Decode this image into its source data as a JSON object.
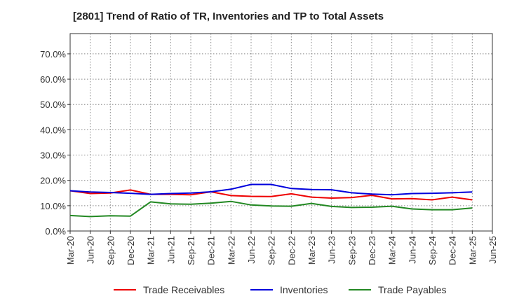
{
  "chart_data": {
    "type": "line",
    "title": "[2801]  Trend of Ratio of TR, Inventories and TP to Total Assets",
    "xlabel": "",
    "ylabel": "",
    "x": [
      "Mar-20",
      "Jun-20",
      "Sep-20",
      "Dec-20",
      "Mar-21",
      "Jun-21",
      "Sep-21",
      "Dec-21",
      "Mar-22",
      "Jun-22",
      "Sep-22",
      "Dec-22",
      "Mar-23",
      "Jun-23",
      "Sep-23",
      "Dec-23",
      "Mar-24",
      "Jun-24",
      "Sep-24",
      "Dec-24",
      "Mar-25",
      "Jun-25"
    ],
    "ylim": [
      0,
      0.78
    ],
    "yticks": [
      0,
      0.1,
      0.2,
      0.3,
      0.4,
      0.5,
      0.6,
      0.7
    ],
    "ytick_labels": [
      "0.0%",
      "10.0%",
      "20.0%",
      "30.0%",
      "40.0%",
      "50.0%",
      "60.0%",
      "70.0%"
    ],
    "grid": true,
    "legend_position": "bottom",
    "series": [
      {
        "name": "Trade Receivables",
        "color": "#ee0000",
        "values": [
          0.159,
          0.148,
          0.15,
          0.162,
          0.145,
          0.145,
          0.143,
          0.155,
          0.14,
          0.137,
          0.136,
          0.147,
          0.134,
          0.13,
          0.132,
          0.141,
          0.127,
          0.128,
          0.123,
          0.134,
          0.123,
          null
        ]
      },
      {
        "name": "Inventories",
        "color": "#0000dd",
        "values": [
          0.159,
          0.154,
          0.152,
          0.149,
          0.145,
          0.148,
          0.15,
          0.155,
          0.165,
          0.184,
          0.184,
          0.168,
          0.164,
          0.163,
          0.151,
          0.146,
          0.143,
          0.148,
          0.149,
          0.151,
          0.154,
          null
        ]
      },
      {
        "name": "Trade Payables",
        "color": "#228822",
        "values": [
          0.061,
          0.057,
          0.06,
          0.059,
          0.115,
          0.107,
          0.106,
          0.11,
          0.117,
          0.103,
          0.099,
          0.098,
          0.109,
          0.097,
          0.093,
          0.094,
          0.098,
          0.087,
          0.084,
          0.084,
          0.091,
          null
        ]
      }
    ]
  }
}
